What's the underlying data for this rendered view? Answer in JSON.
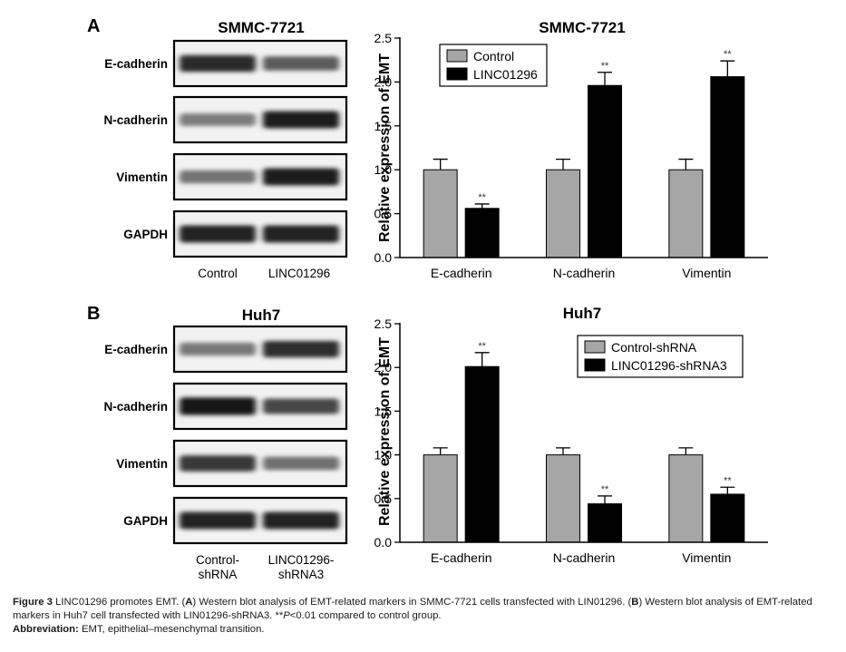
{
  "panels": [
    {
      "letter": "A",
      "blot": {
        "title": "SMMC-7721",
        "rows": [
          {
            "label": "E-cadherin",
            "bands": [
              0.86,
              0.62
            ]
          },
          {
            "label": "N-cadherin",
            "bands": [
              0.45,
              0.92
            ]
          },
          {
            "label": "Vimentin",
            "bands": [
              0.5,
              0.92
            ]
          },
          {
            "label": "GAPDH",
            "bands": [
              0.9,
              0.9
            ]
          }
        ],
        "lanes": [
          "Control",
          "LINC01296"
        ]
      },
      "chart_data": {
        "type": "bar",
        "title": "SMMC-7721",
        "ylabel": "Relative expression of EMT",
        "xlabel": "",
        "categories": [
          "E-cadherin",
          "N-cadherin",
          "Vimentin"
        ],
        "ylim": [
          0,
          2.5
        ],
        "yticks": [
          "0.0",
          "0.5",
          "1.0",
          "1.5",
          "2.0",
          "2.5"
        ],
        "series": [
          {
            "name": "Control",
            "color": "#a6a6a6",
            "values": [
              1.0,
              1.0,
              1.0
            ],
            "errors": [
              0.12,
              0.12,
              0.12
            ]
          },
          {
            "name": "LINC01296",
            "color": "#000000",
            "values": [
              0.56,
              1.96,
              2.06
            ],
            "errors": [
              0.05,
              0.15,
              0.18
            ]
          }
        ],
        "significance": "**",
        "legend": "top-left",
        "grid": false
      }
    },
    {
      "letter": "B",
      "blot": {
        "title": "Huh7",
        "rows": [
          {
            "label": "E-cadherin",
            "bands": [
              0.48,
              0.85
            ]
          },
          {
            "label": "N-cadherin",
            "bands": [
              0.95,
              0.72
            ]
          },
          {
            "label": "Vimentin",
            "bands": [
              0.8,
              0.52
            ]
          },
          {
            "label": "GAPDH",
            "bands": [
              0.9,
              0.9
            ]
          }
        ],
        "lanes": [
          "Control-\nshRNA",
          "LINC01296-\nshRNA3"
        ]
      },
      "chart_data": {
        "type": "bar",
        "title": "Huh7",
        "ylabel": "Relative expression of EMT",
        "xlabel": "",
        "categories": [
          "E-cadherin",
          "N-cadherin",
          "Vimentin"
        ],
        "ylim": [
          0,
          2.5
        ],
        "yticks": [
          "0.0",
          "0.5",
          "1.0",
          "1.5",
          "2.0",
          "2.5"
        ],
        "series": [
          {
            "name": "Control-shRNA",
            "color": "#a6a6a6",
            "values": [
              1.0,
              1.0,
              1.0
            ],
            "errors": [
              0.08,
              0.08,
              0.08
            ]
          },
          {
            "name": "LINC01296-shRNA3",
            "color": "#000000",
            "values": [
              2.01,
              0.44,
              0.55
            ],
            "errors": [
              0.16,
              0.09,
              0.08
            ]
          }
        ],
        "significance": "**",
        "legend": "top-right",
        "grid": false
      }
    }
  ],
  "caption": {
    "figure_label": "Figure 3",
    "text_1": " LINC01296 promotes EMT. (",
    "bold_a": "A",
    "text_2": ") Western blot analysis of EMT-related markers in SMMC-7721 cells transfected with LIN01296. (",
    "bold_b": "B",
    "text_3": ") Western blot analysis of EMT-related markers in Huh7 cell transfected with LIN01296-shRNA3. **",
    "p_italic": "P",
    "text_4": "<0.01 compared to control group.",
    "abbrev_label": "Abbreviation:",
    "abbrev_text": " EMT, epithelial–mesenchymal transition."
  }
}
